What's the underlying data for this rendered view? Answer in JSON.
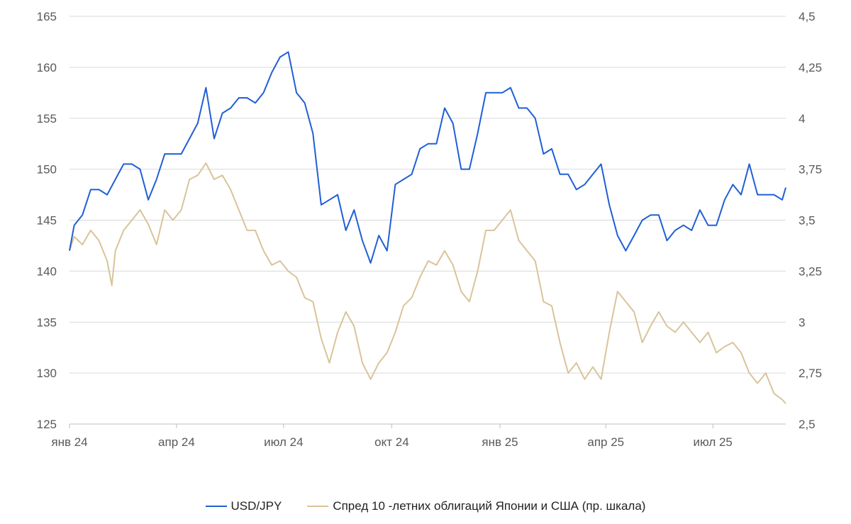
{
  "chart_data": {
    "type": "line",
    "title": "",
    "x_tick_labels": [
      "янв 24",
      "апр 24",
      "июл 24",
      "окт 24",
      "янв 25",
      "апр 25",
      "июл 25"
    ],
    "y_left": {
      "ylim": [
        125,
        165
      ],
      "ticks": [
        "125",
        "130",
        "135",
        "140",
        "145",
        "150",
        "155",
        "160",
        "165"
      ]
    },
    "y_right": {
      "ylim": [
        2.5,
        4.5
      ],
      "ticks": [
        "2,5",
        "2,75",
        "3",
        "3,25",
        "3,5",
        "3,75",
        "4",
        "4,25",
        "4,5"
      ]
    },
    "grid": true,
    "legend_position": "bottom",
    "series": [
      {
        "name": "USD/JPY",
        "axis": "left",
        "color": "#1f5fd6",
        "points": [
          [
            "2024-01-01",
            142.0
          ],
          [
            "2024-01-05",
            144.5
          ],
          [
            "2024-01-12",
            145.5
          ],
          [
            "2024-01-19",
            148.0
          ],
          [
            "2024-01-26",
            148.0
          ],
          [
            "2024-02-02",
            147.5
          ],
          [
            "2024-02-09",
            149.0
          ],
          [
            "2024-02-16",
            150.5
          ],
          [
            "2024-02-23",
            150.5
          ],
          [
            "2024-03-01",
            150.0
          ],
          [
            "2024-03-08",
            147.0
          ],
          [
            "2024-03-15",
            149.0
          ],
          [
            "2024-03-22",
            151.5
          ],
          [
            "2024-03-29",
            151.5
          ],
          [
            "2024-04-05",
            151.5
          ],
          [
            "2024-04-12",
            153.0
          ],
          [
            "2024-04-19",
            154.5
          ],
          [
            "2024-04-26",
            158.0
          ],
          [
            "2024-05-03",
            153.0
          ],
          [
            "2024-05-10",
            155.5
          ],
          [
            "2024-05-17",
            156.0
          ],
          [
            "2024-05-24",
            157.0
          ],
          [
            "2024-05-31",
            157.0
          ],
          [
            "2024-06-07",
            156.5
          ],
          [
            "2024-06-14",
            157.5
          ],
          [
            "2024-06-21",
            159.5
          ],
          [
            "2024-06-28",
            161.0
          ],
          [
            "2024-07-05",
            161.5
          ],
          [
            "2024-07-12",
            157.5
          ],
          [
            "2024-07-19",
            156.5
          ],
          [
            "2024-07-26",
            153.5
          ],
          [
            "2024-08-02",
            146.5
          ],
          [
            "2024-08-09",
            147.0
          ],
          [
            "2024-08-16",
            147.5
          ],
          [
            "2024-08-23",
            144.0
          ],
          [
            "2024-08-30",
            146.0
          ],
          [
            "2024-09-06",
            143.0
          ],
          [
            "2024-09-13",
            140.8
          ],
          [
            "2024-09-20",
            143.5
          ],
          [
            "2024-09-27",
            142.0
          ],
          [
            "2024-10-04",
            148.5
          ],
          [
            "2024-10-11",
            149.0
          ],
          [
            "2024-10-18",
            149.5
          ],
          [
            "2024-10-25",
            152.0
          ],
          [
            "2024-11-01",
            152.5
          ],
          [
            "2024-11-08",
            152.5
          ],
          [
            "2024-11-15",
            156.0
          ],
          [
            "2024-11-22",
            154.5
          ],
          [
            "2024-11-29",
            150.0
          ],
          [
            "2024-12-06",
            150.0
          ],
          [
            "2024-12-13",
            153.5
          ],
          [
            "2024-12-20",
            157.5
          ],
          [
            "2024-12-27",
            157.5
          ],
          [
            "2025-01-03",
            157.5
          ],
          [
            "2025-01-10",
            158.0
          ],
          [
            "2025-01-17",
            156.0
          ],
          [
            "2025-01-24",
            156.0
          ],
          [
            "2025-01-31",
            155.0
          ],
          [
            "2025-02-07",
            151.5
          ],
          [
            "2025-02-14",
            152.0
          ],
          [
            "2025-02-21",
            149.5
          ],
          [
            "2025-02-28",
            149.5
          ],
          [
            "2025-03-07",
            148.0
          ],
          [
            "2025-03-14",
            148.5
          ],
          [
            "2025-03-21",
            149.5
          ],
          [
            "2025-03-28",
            150.5
          ],
          [
            "2025-04-04",
            146.5
          ],
          [
            "2025-04-11",
            143.5
          ],
          [
            "2025-04-18",
            142.0
          ],
          [
            "2025-04-25",
            143.5
          ],
          [
            "2025-05-02",
            145.0
          ],
          [
            "2025-05-09",
            145.5
          ],
          [
            "2025-05-16",
            145.5
          ],
          [
            "2025-05-23",
            143.0
          ],
          [
            "2025-05-30",
            144.0
          ],
          [
            "2025-06-06",
            144.5
          ],
          [
            "2025-06-13",
            144.0
          ],
          [
            "2025-06-20",
            146.0
          ],
          [
            "2025-06-27",
            144.5
          ],
          [
            "2025-07-04",
            144.5
          ],
          [
            "2025-07-11",
            147.0
          ],
          [
            "2025-07-18",
            148.5
          ],
          [
            "2025-07-25",
            147.5
          ],
          [
            "2025-08-01",
            150.5
          ],
          [
            "2025-08-08",
            147.5
          ],
          [
            "2025-08-15",
            147.5
          ],
          [
            "2025-08-22",
            147.5
          ],
          [
            "2025-08-29",
            147.0
          ],
          [
            "2025-09-01",
            148.2
          ]
        ]
      },
      {
        "name": "Спред 10 -летних облигаций Японии и США (пр. шкала)",
        "axis": "right",
        "color": "#d9c49a",
        "points": [
          [
            "2024-01-01",
            3.35
          ],
          [
            "2024-01-05",
            3.42
          ],
          [
            "2024-01-12",
            3.38
          ],
          [
            "2024-01-19",
            3.45
          ],
          [
            "2024-01-26",
            3.4
          ],
          [
            "2024-02-02",
            3.3
          ],
          [
            "2024-02-06",
            3.18
          ],
          [
            "2024-02-09",
            3.35
          ],
          [
            "2024-02-16",
            3.45
          ],
          [
            "2024-02-23",
            3.5
          ],
          [
            "2024-03-01",
            3.55
          ],
          [
            "2024-03-08",
            3.48
          ],
          [
            "2024-03-15",
            3.38
          ],
          [
            "2024-03-22",
            3.55
          ],
          [
            "2024-03-29",
            3.5
          ],
          [
            "2024-04-05",
            3.55
          ],
          [
            "2024-04-12",
            3.7
          ],
          [
            "2024-04-19",
            3.72
          ],
          [
            "2024-04-26",
            3.78
          ],
          [
            "2024-05-03",
            3.7
          ],
          [
            "2024-05-10",
            3.72
          ],
          [
            "2024-05-17",
            3.65
          ],
          [
            "2024-05-24",
            3.55
          ],
          [
            "2024-05-31",
            3.45
          ],
          [
            "2024-06-07",
            3.45
          ],
          [
            "2024-06-14",
            3.35
          ],
          [
            "2024-06-21",
            3.28
          ],
          [
            "2024-06-28",
            3.3
          ],
          [
            "2024-07-05",
            3.25
          ],
          [
            "2024-07-12",
            3.22
          ],
          [
            "2024-07-19",
            3.12
          ],
          [
            "2024-07-26",
            3.1
          ],
          [
            "2024-08-02",
            2.92
          ],
          [
            "2024-08-09",
            2.8
          ],
          [
            "2024-08-16",
            2.95
          ],
          [
            "2024-08-23",
            3.05
          ],
          [
            "2024-08-30",
            2.98
          ],
          [
            "2024-09-06",
            2.8
          ],
          [
            "2024-09-13",
            2.72
          ],
          [
            "2024-09-20",
            2.8
          ],
          [
            "2024-09-27",
            2.85
          ],
          [
            "2024-10-04",
            2.95
          ],
          [
            "2024-10-11",
            3.08
          ],
          [
            "2024-10-18",
            3.12
          ],
          [
            "2024-10-25",
            3.22
          ],
          [
            "2024-11-01",
            3.3
          ],
          [
            "2024-11-08",
            3.28
          ],
          [
            "2024-11-15",
            3.35
          ],
          [
            "2024-11-22",
            3.28
          ],
          [
            "2024-11-29",
            3.15
          ],
          [
            "2024-12-06",
            3.1
          ],
          [
            "2024-12-13",
            3.25
          ],
          [
            "2024-12-20",
            3.45
          ],
          [
            "2024-12-27",
            3.45
          ],
          [
            "2025-01-03",
            3.5
          ],
          [
            "2025-01-10",
            3.55
          ],
          [
            "2025-01-17",
            3.4
          ],
          [
            "2025-01-24",
            3.35
          ],
          [
            "2025-01-31",
            3.3
          ],
          [
            "2025-02-07",
            3.1
          ],
          [
            "2025-02-14",
            3.08
          ],
          [
            "2025-02-21",
            2.9
          ],
          [
            "2025-02-28",
            2.75
          ],
          [
            "2025-03-07",
            2.8
          ],
          [
            "2025-03-14",
            2.72
          ],
          [
            "2025-03-21",
            2.78
          ],
          [
            "2025-03-28",
            2.72
          ],
          [
            "2025-04-04",
            2.95
          ],
          [
            "2025-04-11",
            3.15
          ],
          [
            "2025-04-18",
            3.1
          ],
          [
            "2025-04-25",
            3.05
          ],
          [
            "2025-05-02",
            2.9
          ],
          [
            "2025-05-09",
            2.98
          ],
          [
            "2025-05-16",
            3.05
          ],
          [
            "2025-05-23",
            2.98
          ],
          [
            "2025-05-30",
            2.95
          ],
          [
            "2025-06-06",
            3.0
          ],
          [
            "2025-06-13",
            2.95
          ],
          [
            "2025-06-20",
            2.9
          ],
          [
            "2025-06-27",
            2.95
          ],
          [
            "2025-07-04",
            2.85
          ],
          [
            "2025-07-11",
            2.88
          ],
          [
            "2025-07-18",
            2.9
          ],
          [
            "2025-07-25",
            2.85
          ],
          [
            "2025-08-01",
            2.75
          ],
          [
            "2025-08-08",
            2.7
          ],
          [
            "2025-08-15",
            2.75
          ],
          [
            "2025-08-22",
            2.65
          ],
          [
            "2025-08-29",
            2.62
          ],
          [
            "2025-09-01",
            2.6
          ]
        ]
      }
    ]
  }
}
